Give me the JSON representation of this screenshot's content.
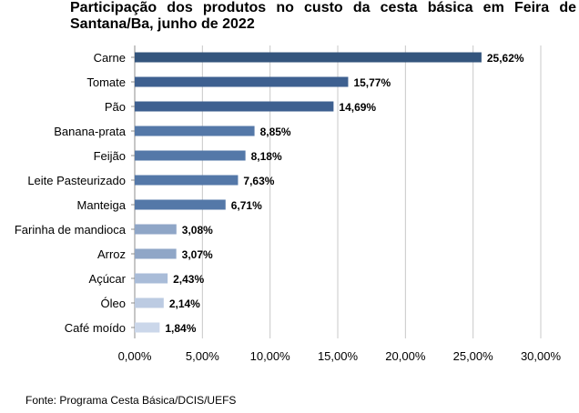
{
  "chart_data": {
    "type": "bar",
    "orientation": "horizontal",
    "title_lines": [
      "Participação dos produtos no custo da cesta básica em Feira de",
      "Santana/Ba, junho de 2022"
    ],
    "categories": [
      "Carne",
      "Tomate",
      "Pão",
      "Banana-prata",
      "Feijão",
      "Leite Pasteurizado",
      "Manteiga",
      "Farinha de mandioca",
      "Arroz",
      "Açúcar",
      "Óleo",
      "Café moído"
    ],
    "values": [
      25.62,
      15.77,
      14.69,
      8.85,
      8.18,
      7.63,
      6.71,
      3.08,
      3.07,
      2.43,
      2.14,
      1.84
    ],
    "value_labels": [
      "25,62%",
      "15,77%",
      "14,69%",
      "8,85%",
      "8,18%",
      "7,63%",
      "6,71%",
      "3,08%",
      "3,07%",
      "2,43%",
      "2,14%",
      "1,84%"
    ],
    "x_ticks": [
      0,
      5,
      10,
      15,
      20,
      25,
      30
    ],
    "x_tick_labels": [
      "0,00%",
      "5,00%",
      "10,00%",
      "15,00%",
      "20,00%",
      "25,00%",
      "30,00%"
    ],
    "xlim": [
      0,
      30
    ],
    "grid": true,
    "colors": [
      "#34557d",
      "#3e6090",
      "#3e6090",
      "#5478a8",
      "#5478a8",
      "#5478a8",
      "#5478a8",
      "#8fa6c7",
      "#8fa6c7",
      "#a9bcd8",
      "#bccbe2",
      "#cbd7ea"
    ]
  },
  "source": "Fonte: Programa Cesta Básica/DCIS/UEFS"
}
